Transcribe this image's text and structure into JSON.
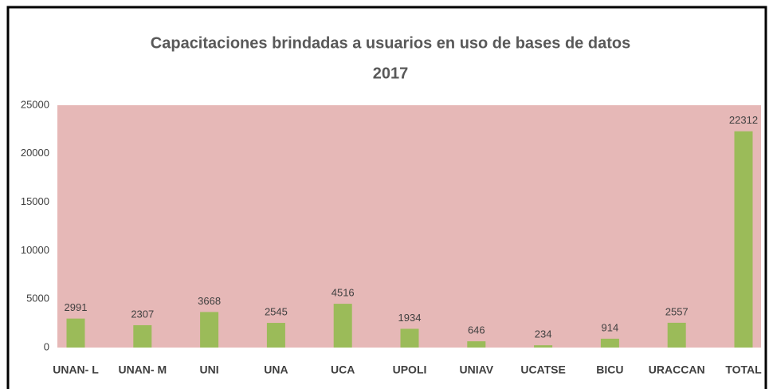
{
  "chart_data": {
    "type": "bar",
    "title": "Capacitaciones brindadas a usuarios en uso de bases de datos",
    "subtitle": "2017",
    "categories": [
      "UNAN- L",
      "UNAN- M",
      "UNI",
      "UNA",
      "UCA",
      "UPOLI",
      "UNIAV",
      "UCATSE",
      "BICU",
      "URACCAN",
      "TOTAL"
    ],
    "values": [
      2991,
      2307,
      3668,
      2545,
      4516,
      1934,
      646,
      234,
      914,
      2557,
      22312
    ],
    "color": "#9bbb59",
    "ylim": [
      0,
      25000
    ],
    "yticks": [
      0,
      5000,
      10000,
      15000,
      20000,
      25000
    ]
  }
}
